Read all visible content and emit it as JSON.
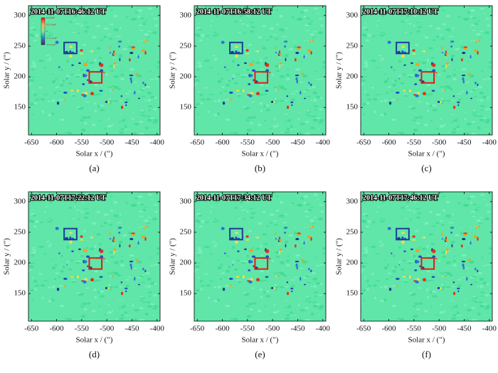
{
  "chart_data": [
    {
      "type": "image",
      "title": "2014-11-07T16:46:12 UT",
      "caption": "(a)",
      "xlabel": "Solar x / (″)",
      "ylabel": "Solar y / (″)",
      "xlim": [
        -656,
        -394
      ],
      "ylim": [
        105,
        316
      ],
      "xticks": [
        -650,
        -600,
        -550,
        -500,
        -450,
        -400
      ],
      "yticks": [
        150,
        200,
        250,
        300
      ],
      "colorbar": {
        "labels": [
          "0.3 A/m²",
          "0.15 A/m²",
          "0",
          "-0.15 A/m²",
          "-0.3 A/m²"
        ]
      },
      "regions": [
        {
          "color": "#1f3a93",
          "x": [
            -585,
            -560
          ],
          "y": [
            238,
            256
          ]
        },
        {
          "color": "#e31a1c",
          "x": [
            -535,
            -510
          ],
          "y": [
            190,
            208
          ]
        }
      ]
    },
    {
      "type": "image",
      "title": "2014-11-07T16:58:12 UT",
      "caption": "(b)",
      "xlabel": "Solar x / (″)",
      "ylabel": "Solar y / (″)",
      "xlim": [
        -656,
        -394
      ],
      "ylim": [
        105,
        316
      ],
      "xticks": [
        -650,
        -600,
        -550,
        -500,
        -450,
        -400
      ],
      "yticks": [
        150,
        200,
        250,
        300
      ],
      "regions": [
        {
          "color": "#1f3a93",
          "x": [
            -585,
            -560
          ],
          "y": [
            238,
            256
          ]
        },
        {
          "color": "#e31a1c",
          "x": [
            -535,
            -510
          ],
          "y": [
            190,
            208
          ]
        }
      ]
    },
    {
      "type": "image",
      "title": "2014-11-07T17:10:12 UT",
      "caption": "(c)",
      "xlabel": "Solar x / (″)",
      "ylabel": "Solar y / (″)",
      "xlim": [
        -656,
        -394
      ],
      "ylim": [
        105,
        316
      ],
      "xticks": [
        -650,
        -600,
        -550,
        -500,
        -450,
        -400
      ],
      "yticks": [
        150,
        200,
        250,
        300
      ],
      "regions": [
        {
          "color": "#1f3a93",
          "x": [
            -585,
            -560
          ],
          "y": [
            238,
            256
          ]
        },
        {
          "color": "#e31a1c",
          "x": [
            -535,
            -510
          ],
          "y": [
            190,
            208
          ]
        }
      ]
    },
    {
      "type": "image",
      "title": "2014-11-07T17:22:12 UT",
      "caption": "(d)",
      "xlabel": "Solar x / (″)",
      "ylabel": "Solar y / (″)",
      "xlim": [
        -656,
        -394
      ],
      "ylim": [
        105,
        316
      ],
      "xticks": [
        -650,
        -600,
        -550,
        -500,
        -450,
        -400
      ],
      "yticks": [
        150,
        200,
        250,
        300
      ],
      "regions": [
        {
          "color": "#1f3a93",
          "x": [
            -585,
            -560
          ],
          "y": [
            238,
            256
          ]
        },
        {
          "color": "#e31a1c",
          "x": [
            -535,
            -510
          ],
          "y": [
            190,
            208
          ]
        }
      ]
    },
    {
      "type": "image",
      "title": "2014-11-07T17:34:12 UT",
      "caption": "(e)",
      "xlabel": "Solar x / (″)",
      "ylabel": "Solar y / (″)",
      "xlim": [
        -656,
        -394
      ],
      "ylim": [
        105,
        316
      ],
      "xticks": [
        -650,
        -600,
        -550,
        -500,
        -450,
        -400
      ],
      "yticks": [
        150,
        200,
        250,
        300
      ],
      "regions": [
        {
          "color": "#1f3a93",
          "x": [
            -585,
            -560
          ],
          "y": [
            238,
            256
          ]
        },
        {
          "color": "#e31a1c",
          "x": [
            -535,
            -510
          ],
          "y": [
            190,
            208
          ]
        }
      ]
    },
    {
      "type": "image",
      "title": "2014-11-07T17:46:12 UT",
      "caption": "(f)",
      "xlabel": "Solar x / (″)",
      "ylabel": "Solar y / (″)",
      "xlim": [
        -656,
        -394
      ],
      "ylim": [
        105,
        316
      ],
      "xticks": [
        -650,
        -600,
        -550,
        -500,
        -450,
        -400
      ],
      "yticks": [
        150,
        200,
        250,
        300
      ],
      "regions": [
        {
          "color": "#1f3a93",
          "x": [
            -585,
            -560
          ],
          "y": [
            238,
            256
          ]
        },
        {
          "color": "#e31a1c",
          "x": [
            -535,
            -510
          ],
          "y": [
            190,
            208
          ]
        }
      ]
    }
  ]
}
